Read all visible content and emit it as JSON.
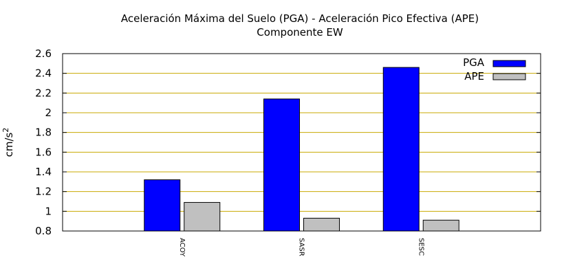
{
  "chart_data": {
    "type": "bar",
    "title": "Aceleración Máxima del Suelo (PGA) -  Aceleración Pico Efectiva (APE)",
    "subtitle": "Componente EW",
    "ylabel": "cm/s",
    "ylabel_superscript": "2",
    "xlabel": "",
    "categories": [
      "ACOY",
      "SASR",
      "SESC"
    ],
    "series": [
      {
        "name": "PGA",
        "values": [
          1.32,
          2.14,
          2.46
        ],
        "color": "#0000ff"
      },
      {
        "name": "APE",
        "values": [
          1.09,
          0.93,
          0.91
        ],
        "color": "#c0c0c0"
      }
    ],
    "ylim": [
      0.8,
      2.6
    ],
    "yticks": [
      "0.8",
      "1",
      "1.2",
      "1.4",
      "1.6",
      "1.8",
      "2",
      "2.2",
      "2.4",
      "2.6"
    ],
    "grid": true,
    "grid_color": "#c8a800",
    "legend_position": "top-right"
  }
}
